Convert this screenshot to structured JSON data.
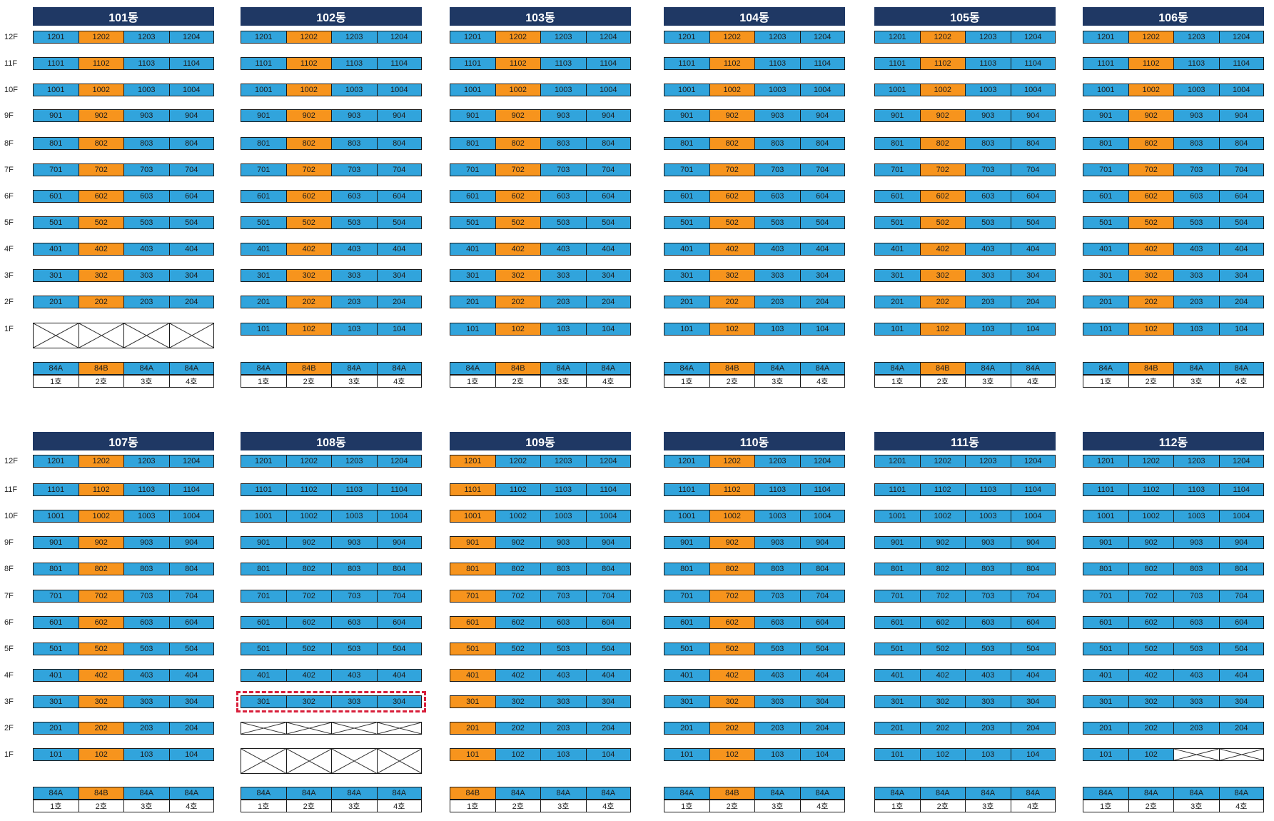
{
  "colors": {
    "header": "#1f3864",
    "standard_unit": "#31a4dc",
    "type_b_unit": "#f7941d",
    "highlight": "#d81e3a"
  },
  "floor_labels": [
    "12F",
    "11F",
    "10F",
    "9F",
    "8F",
    "7F",
    "6F",
    "5F",
    "4F",
    "3F",
    "2F",
    "1F"
  ],
  "type_labels": {
    "A": "84A",
    "B": "84B"
  },
  "unit_line_labels": [
    "1호",
    "2호",
    "3호",
    "4호"
  ],
  "buildings": [
    {
      "name": "101동",
      "orange_line": 2,
      "missing": [
        "1F:1",
        "1F:2",
        "1F:3",
        "1F:4"
      ]
    },
    {
      "name": "102동",
      "orange_line": 2,
      "missing": []
    },
    {
      "name": "103동",
      "orange_line": 2,
      "missing": []
    },
    {
      "name": "104동",
      "orange_line": 2,
      "missing": []
    },
    {
      "name": "105동",
      "orange_line": 2,
      "missing": []
    },
    {
      "name": "106동",
      "orange_line": 2,
      "missing": []
    },
    {
      "name": "107동",
      "orange_line": 2,
      "missing": []
    },
    {
      "name": "108동",
      "orange_line": 0,
      "missing": [
        "2F:1",
        "2F:2",
        "2F:3",
        "2F:4",
        "1F:1",
        "1F:2",
        "1F:3",
        "1F:4"
      ],
      "highlight_floor": "3F"
    },
    {
      "name": "109동",
      "orange_line": 1,
      "missing": []
    },
    {
      "name": "110동",
      "orange_line": 2,
      "missing": []
    },
    {
      "name": "111동",
      "orange_line": 0,
      "missing": []
    },
    {
      "name": "112동",
      "orange_line": 0,
      "missing": [
        "1F:3",
        "1F:4"
      ]
    }
  ]
}
